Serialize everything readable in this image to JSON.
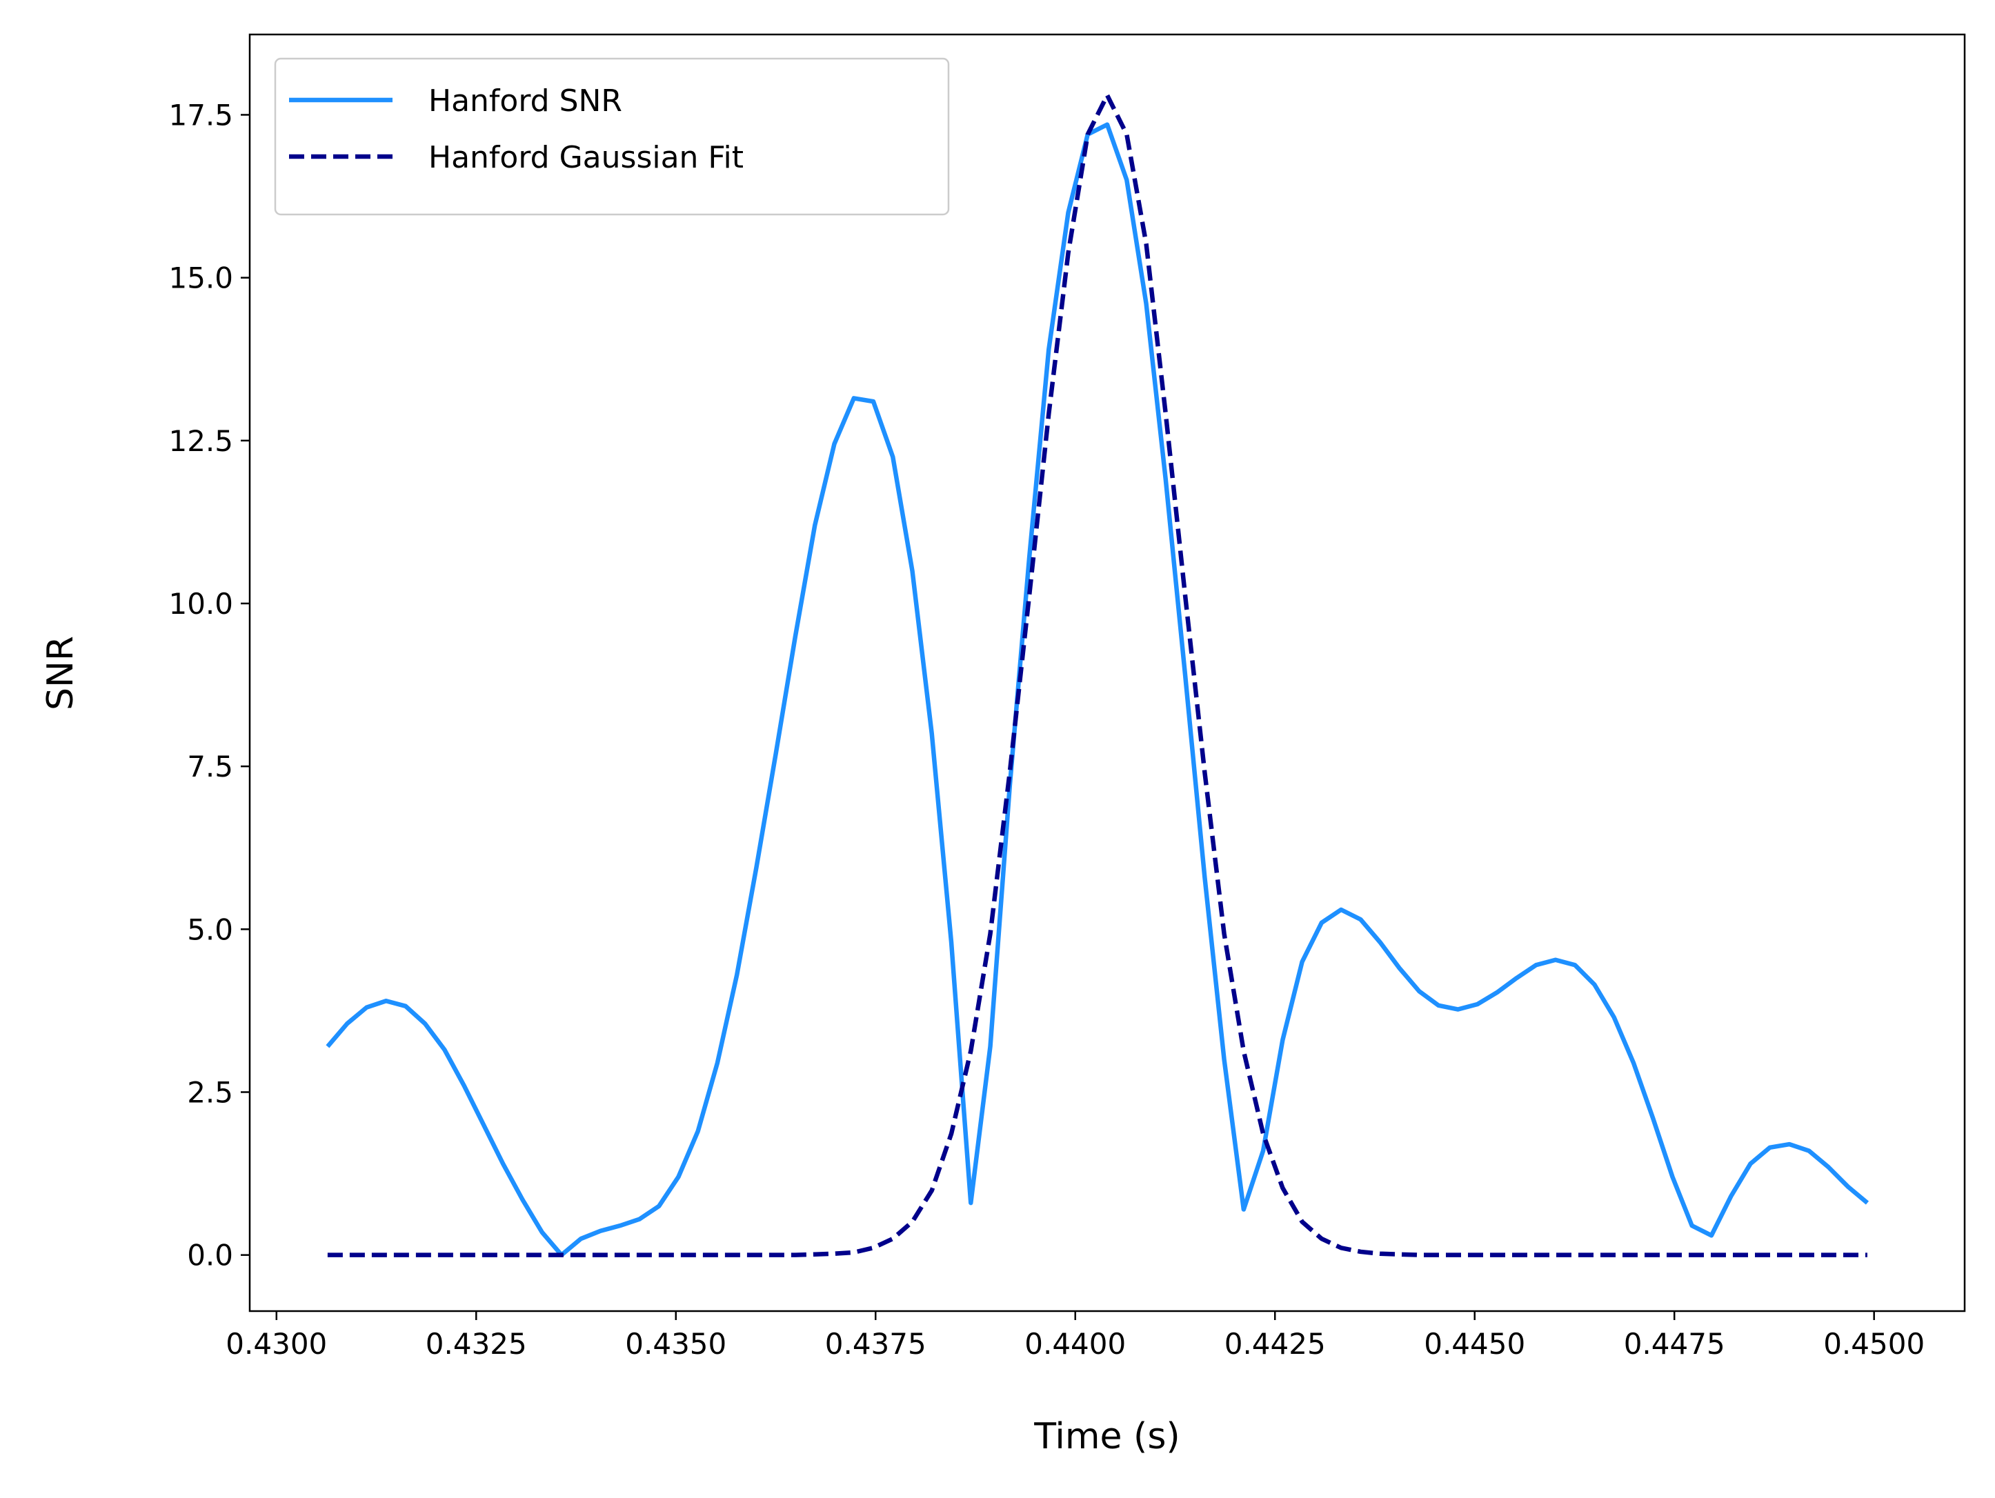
{
  "chart_data": {
    "type": "line",
    "x_label": "Time (s)",
    "y_label": "SNR",
    "x": [
      0.43064,
      0.430884,
      0.431128,
      0.431372,
      0.431616,
      0.43186,
      0.432104,
      0.432348,
      0.432592,
      0.432836,
      0.43308,
      0.433324,
      0.433568,
      0.433812,
      0.434056,
      0.4343,
      0.434544,
      0.434788,
      0.435032,
      0.435276,
      0.43552,
      0.435764,
      0.436008,
      0.436252,
      0.436496,
      0.43674,
      0.436984,
      0.437228,
      0.437472,
      0.437716,
      0.43796,
      0.438204,
      0.438448,
      0.438692,
      0.438936,
      0.43918,
      0.439424,
      0.439668,
      0.439912,
      0.440156,
      0.4404,
      0.440644,
      0.440888,
      0.441132,
      0.441376,
      0.44162,
      0.441864,
      0.442108,
      0.442352,
      0.442596,
      0.44284,
      0.443084,
      0.443328,
      0.443572,
      0.443816,
      0.44406,
      0.444304,
      0.444548,
      0.444792,
      0.445036,
      0.44528,
      0.445524,
      0.445768,
      0.446012,
      0.446256,
      0.4465,
      0.446744,
      0.446988,
      0.447232,
      0.447476,
      0.44772,
      0.447964,
      0.448208,
      0.448452,
      0.448696,
      0.44894,
      0.449184,
      0.449428,
      0.449672,
      0.449916
    ],
    "series": [
      {
        "name": "Hanford SNR",
        "color": "#1e90ff",
        "linestyle": "solid",
        "values": [
          3.2,
          3.55,
          3.8,
          3.9,
          3.82,
          3.55,
          3.15,
          2.6,
          2.0,
          1.4,
          0.85,
          0.35,
          0.0,
          0.25,
          0.37,
          0.45,
          0.55,
          0.75,
          1.2,
          1.9,
          2.95,
          4.3,
          5.95,
          7.7,
          9.5,
          11.2,
          12.45,
          13.15,
          13.1,
          12.25,
          10.5,
          8.0,
          4.8,
          0.8,
          3.2,
          7.2,
          10.7,
          13.9,
          16.0,
          17.2,
          17.35,
          16.5,
          14.6,
          11.9,
          8.9,
          5.8,
          3.0,
          0.7,
          1.6,
          3.3,
          4.5,
          5.1,
          5.3,
          5.15,
          4.8,
          4.4,
          4.05,
          3.83,
          3.77,
          3.85,
          4.03,
          4.25,
          4.45,
          4.53,
          4.45,
          4.15,
          3.65,
          2.95,
          2.1,
          1.2,
          0.45,
          0.3,
          0.9,
          1.4,
          1.65,
          1.7,
          1.6,
          1.35,
          1.05,
          0.8
        ]
      },
      {
        "name": "Hanford Gaussian Fit",
        "color": "#00008b",
        "linestyle": "dashed",
        "values": [
          0,
          0,
          0,
          0,
          0,
          0,
          0,
          0,
          0,
          0,
          0,
          0,
          0,
          0,
          0,
          0,
          0,
          0,
          0,
          0,
          0,
          0,
          0,
          0,
          0,
          0.01,
          0.02,
          0.04,
          0.11,
          0.25,
          0.51,
          0.99,
          1.86,
          3.13,
          4.93,
          7.41,
          10.12,
          12.91,
          15.38,
          17.2,
          17.8,
          17.2,
          15.52,
          12.91,
          10.12,
          7.41,
          4.93,
          3.13,
          1.86,
          1.03,
          0.51,
          0.25,
          0.11,
          0.05,
          0.02,
          0.01,
          0,
          0,
          0,
          0,
          0,
          0,
          0,
          0,
          0,
          0,
          0,
          0,
          0,
          0,
          0,
          0,
          0,
          0,
          0,
          0,
          0,
          0,
          0,
          0
        ]
      }
    ],
    "xlim": [
      0.429665,
      0.451134
    ],
    "ylim": [
      -0.861,
      18.733
    ],
    "xticks": [
      {
        "value": 0.43,
        "label": "0.4300"
      },
      {
        "value": 0.4325,
        "label": "0.4325"
      },
      {
        "value": 0.435,
        "label": "0.4350"
      },
      {
        "value": 0.4375,
        "label": "0.4375"
      },
      {
        "value": 0.44,
        "label": "0.4400"
      },
      {
        "value": 0.4425,
        "label": "0.4425"
      },
      {
        "value": 0.445,
        "label": "0.4450"
      },
      {
        "value": 0.4475,
        "label": "0.4475"
      },
      {
        "value": 0.45,
        "label": "0.4500"
      }
    ],
    "yticks": [
      {
        "value": 0,
        "label": "0.0"
      },
      2.5,
      {
        "value": 5,
        "label": "5.0"
      },
      7.5,
      {
        "value": 10,
        "label": "10.0"
      },
      12.5,
      {
        "value": 15,
        "label": "15.0"
      },
      17.5
    ],
    "grid": false,
    "legend": "upper left"
  }
}
